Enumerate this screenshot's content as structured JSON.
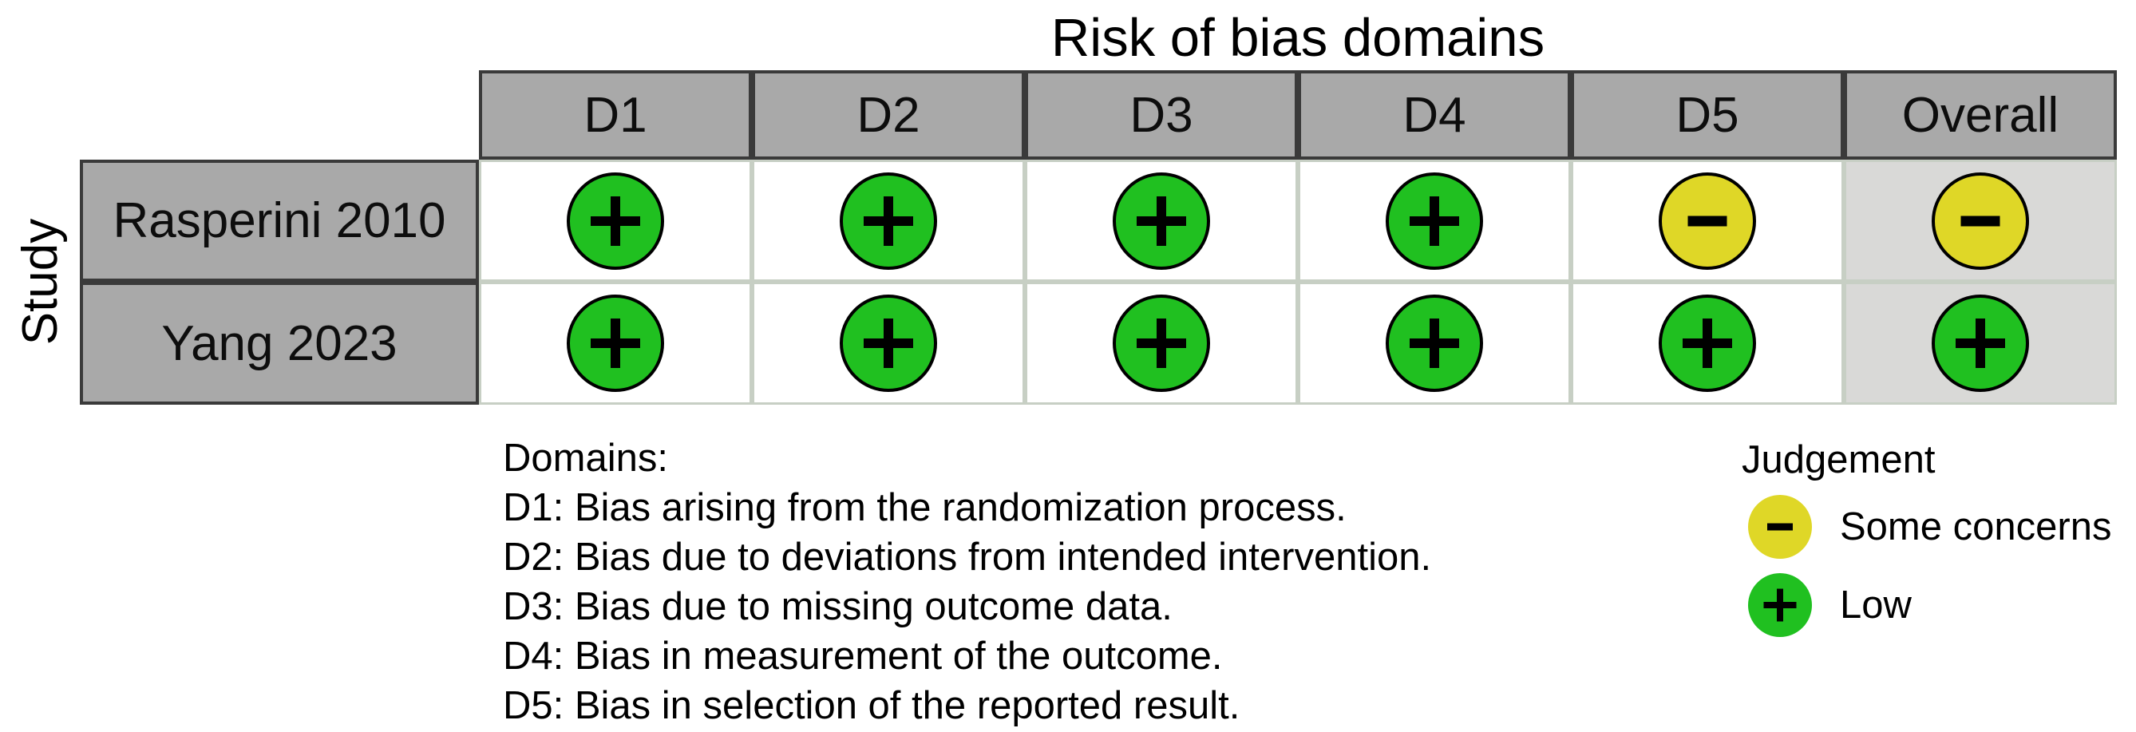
{
  "title": "Risk of bias domains",
  "axis_label": "Study",
  "columns": [
    "D1",
    "D2",
    "D3",
    "D4",
    "D5",
    "Overall"
  ],
  "rows": [
    {
      "study": "Rasperini 2010",
      "judgements": [
        "low",
        "low",
        "low",
        "low",
        "some_concerns",
        "some_concerns"
      ]
    },
    {
      "study": "Yang 2023",
      "judgements": [
        "low",
        "low",
        "low",
        "low",
        "low",
        "low"
      ]
    }
  ],
  "judgement_symbols": {
    "low": "+",
    "some_concerns": "-"
  },
  "domains_legend": {
    "heading": "Domains:",
    "items": [
      "D1: Bias arising from the randomization process.",
      "D2: Bias due to deviations from intended intervention.",
      "D3: Bias due to missing outcome data.",
      "D4: Bias in measurement of the outcome.",
      "D5: Bias in selection of the reported result."
    ]
  },
  "judgement_legend": {
    "heading": "Judgement",
    "items": [
      {
        "judgement": "some_concerns",
        "label": "Some concerns"
      },
      {
        "judgement": "low",
        "label": "Low"
      }
    ]
  },
  "colors": {
    "low": "#20c020",
    "some_concerns": "#dfd727",
    "header_fill": "#a9a9a9",
    "overall_column_fill": "#d9d9d7",
    "grid_line": "#c7cfc4",
    "box_border": "#3a3a3a",
    "symbol": "#000000"
  },
  "chart_data": {
    "type": "table",
    "title": "Risk of bias domains",
    "ylabel": "Study",
    "x_categories": [
      "D1",
      "D2",
      "D3",
      "D4",
      "D5",
      "Overall"
    ],
    "y_categories": [
      "Rasperini 2010",
      "Yang 2023"
    ],
    "values": [
      [
        "Low",
        "Low",
        "Low",
        "Low",
        "Some concerns",
        "Some concerns"
      ],
      [
        "Low",
        "Low",
        "Low",
        "Low",
        "Low",
        "Low"
      ]
    ],
    "legend": [
      {
        "symbol": "-",
        "color": "#dfd727",
        "label": "Some concerns"
      },
      {
        "symbol": "+",
        "color": "#20c020",
        "label": "Low"
      }
    ],
    "legend_position": "bottom-right",
    "grid": "on"
  }
}
